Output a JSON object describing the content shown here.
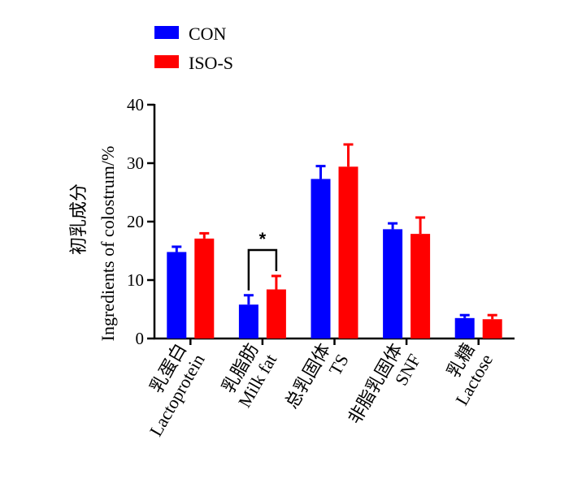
{
  "chart_data": {
    "type": "bar",
    "ylabel_line1": "初乳成分",
    "ylabel_line2": "Ingredients of colostrum/%",
    "ylim": [
      0,
      40
    ],
    "yticks": [
      "0",
      "10",
      "20",
      "30",
      "40"
    ],
    "categories": [
      {
        "line1": "乳蛋白",
        "line2": "Lactoprotein"
      },
      {
        "line1": "乳脂肪",
        "line2": "Milk fat"
      },
      {
        "line1": "总乳固体",
        "line2": "TS"
      },
      {
        "line1": "非脂乳固体",
        "line2": "SNF"
      },
      {
        "line1": "乳糖",
        "line2": "Lactose"
      }
    ],
    "series": [
      {
        "name": "CON",
        "color": "#0000ff",
        "values": [
          14.8,
          5.8,
          27.3,
          18.7,
          3.5
        ],
        "errors": [
          0.9,
          1.6,
          2.2,
          1.0,
          0.5
        ]
      },
      {
        "name": "ISO-S",
        "color": "#ff0000",
        "values": [
          17.1,
          8.4,
          29.4,
          17.9,
          3.3
        ],
        "errors": [
          0.9,
          2.3,
          3.8,
          2.8,
          0.7
        ]
      }
    ],
    "significance": [
      {
        "category_index": 1,
        "label": "*"
      }
    ],
    "grid": false,
    "legend_position": "top-left"
  }
}
